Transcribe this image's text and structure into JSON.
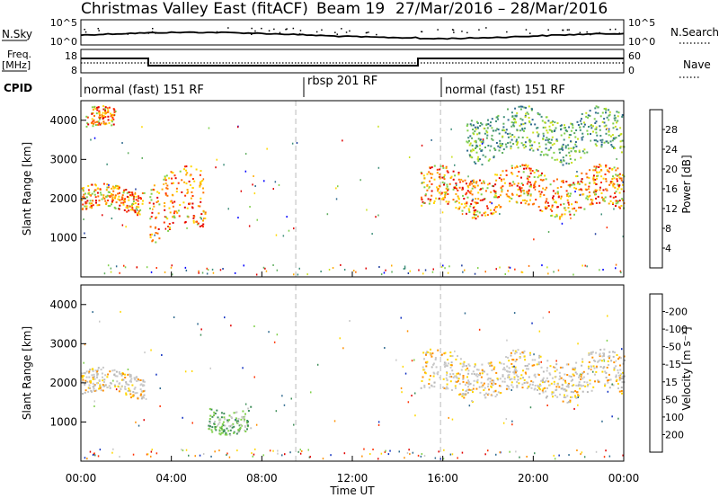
{
  "header": {
    "station": "Christmas Valley East (fitACF)",
    "beam": "Beam 19",
    "date_range": "27/Mar/2016 – 28/Mar/2016"
  },
  "top_panels": {
    "nsky_label": "N.Sky",
    "nsky_ticks": [
      "10^5",
      "10^0"
    ],
    "nsearch_label": "N.Search",
    "nsearch_ticks": [
      "10^5",
      "10^0"
    ],
    "freq_label_line1": "Freq.",
    "freq_label_line2": "[MHz]",
    "freq_ticks": [
      "18",
      "8"
    ],
    "nave_label": "Nave",
    "nave_ticks": [
      "60",
      "0"
    ],
    "cpid_label": "CPID",
    "cpid_segments": [
      {
        "label": "normal (fast) 151 RF",
        "start_h": 0,
        "end_h": 9.5
      },
      {
        "label": "rbsp 201 RF",
        "start_h": 9.5,
        "end_h": 15.9
      },
      {
        "label": "normal (fast) 151 RF",
        "start_h": 15.9,
        "end_h": 24
      }
    ]
  },
  "chart_data": [
    {
      "type": "heatmap",
      "name": "power",
      "ylabel": "Slant Range [km]",
      "ylim": [
        0,
        4500
      ],
      "yticks": [
        1000,
        2000,
        3000,
        4000
      ],
      "xlim": [
        0,
        24
      ],
      "colorbar": {
        "label": "Power [dB]",
        "ticks": [
          "4",
          "8",
          "12",
          "16",
          "20",
          "24",
          "28"
        ],
        "colors": [
          "#0000ff",
          "#1f3d9e",
          "#2f6a8f",
          "#3f8f7a",
          "#5fae5f",
          "#7fd04a",
          "#c8e020",
          "#ffd700",
          "#ffaa00",
          "#ff7000",
          "#ff3000",
          "#e00000"
        ]
      },
      "features": [
        {
          "desc": "echo band",
          "h0": 0.0,
          "h1": 2.8,
          "r0": 1700,
          "r1": 2300,
          "dominant": "orange"
        },
        {
          "desc": "echo band",
          "h0": 0.2,
          "h1": 1.5,
          "r0": 3800,
          "r1": 4300,
          "dominant": "orange"
        },
        {
          "desc": "echo band",
          "h0": 3.0,
          "h1": 5.5,
          "r0": 1100,
          "r1": 2600,
          "dominant": "orange"
        },
        {
          "desc": "echo band",
          "h0": 15.0,
          "h1": 24.0,
          "r0": 1700,
          "r1": 2700,
          "dominant": "orange"
        },
        {
          "desc": "echo band",
          "h0": 17.0,
          "h1": 24.0,
          "r0": 3100,
          "r1": 4200,
          "dominant": "green"
        }
      ]
    },
    {
      "type": "heatmap",
      "name": "velocity",
      "ylabel": "Slant Range [km]",
      "ylim": [
        0,
        4500
      ],
      "yticks": [
        1000,
        2000,
        3000,
        4000
      ],
      "xlim": [
        0,
        24
      ],
      "xlabel": "Time UT",
      "xticks": [
        "00:00",
        "04:00",
        "08:00",
        "12:00",
        "16:00",
        "20:00",
        "00:00"
      ],
      "colorbar": {
        "label": "Velocity [m s⁻¹]",
        "ticks": [
          "200",
          "100",
          "50",
          "15",
          "-15",
          "-50",
          "-100",
          "-200"
        ],
        "colors": [
          "#1030c0",
          "#2f6a8f",
          "#3f8f5a",
          "#7fd04a",
          "#c8c8c8",
          "#ffd700",
          "#ff9000",
          "#ff3000",
          "#e00000"
        ]
      },
      "features": [
        {
          "desc": "echo band",
          "h0": 0.0,
          "h1": 2.8,
          "r0": 1700,
          "r1": 2300,
          "dominant": "grey"
        },
        {
          "desc": "echo band",
          "h0": 5.6,
          "h1": 7.5,
          "r0": 800,
          "r1": 1400,
          "dominant": "green"
        },
        {
          "desc": "echo band",
          "h0": 15.0,
          "h1": 24.0,
          "r0": 1700,
          "r1": 2700,
          "dominant": "grey"
        }
      ]
    }
  ]
}
